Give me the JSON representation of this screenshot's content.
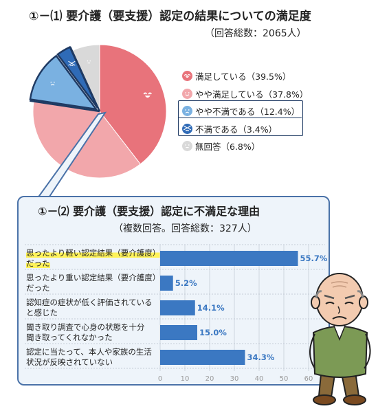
{
  "colors": {
    "satisfied": "#e8737b",
    "somewhat_satisfied": "#f2a7ab",
    "somewhat_dissatisfied": "#7ab1e1",
    "dissatisfied": "#2f6bb7",
    "no_answer": "#d9d9d9",
    "bar": "#3b78c2",
    "bar_label": "#3b78c2",
    "card_border": "#4a72a8",
    "card_bg": "#eef4fa",
    "highlight": "#fff35a"
  },
  "chart_data": [
    {
      "type": "pie",
      "title": "①－⑴ 要介護（要支援）認定の結果についての満足度",
      "subtitle": "（回答総数：2065人）",
      "slices": [
        {
          "label": "満足している",
          "value": 39.5,
          "legend": "満足している（39.5%）",
          "color_key": "satisfied",
          "face": "happy"
        },
        {
          "label": "やや満足している",
          "value": 37.8,
          "legend": "やや満足している（37.8%）",
          "color_key": "somewhat_satisfied",
          "face": "smile"
        },
        {
          "label": "やや不満である",
          "value": 12.4,
          "legend": "やや不満である（12.4%）",
          "color_key": "somewhat_dissatisfied",
          "face": "sad"
        },
        {
          "label": "不満である",
          "value": 3.4,
          "legend": "不満である（3.4%）",
          "color_key": "dissatisfied",
          "face": "angry"
        },
        {
          "label": "無回答",
          "value": 6.8,
          "legend": "無回答（6.8%）",
          "color_key": "no_answer",
          "face": "neutral"
        }
      ],
      "highlighted": [
        "やや不満である",
        "不満である"
      ]
    },
    {
      "type": "bar",
      "orientation": "horizontal",
      "title": "①－⑵ 要介護（要支援）認定に不満足な理由",
      "subtitle": "（複数回答。回答総数：327人）",
      "categories": [
        [
          "思ったより軽い認定結果（要介護度）",
          "だった"
        ],
        [
          "思ったより重い認定結果（要介護度）",
          "だった"
        ],
        [
          "認知症の症状が低く評価されている",
          "と感じた"
        ],
        [
          "聞き取り調査で心身の状態を十分",
          "聞き取ってくれなかった"
        ],
        [
          "認定に当たって、本人や家族の生活",
          "状況が反映されていない"
        ]
      ],
      "values": [
        55.7,
        5.2,
        14.1,
        15.0,
        34.3
      ],
      "value_labels": [
        "55.7%",
        "5.2%",
        "14.1%",
        "15.0%",
        "34.3%"
      ],
      "highlighted_category": 0,
      "xlim": [
        0,
        60
      ],
      "xticks": [
        "0",
        "10",
        "20",
        "30",
        "40",
        "50",
        "60"
      ],
      "grid": true
    }
  ]
}
